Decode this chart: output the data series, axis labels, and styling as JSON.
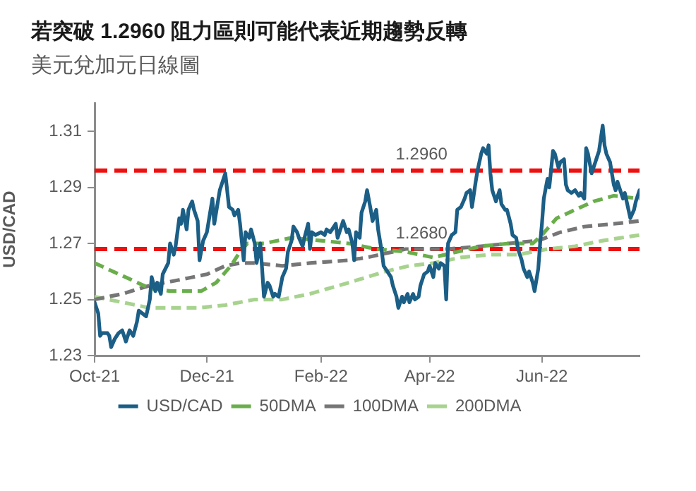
{
  "chart_data": {
    "type": "line",
    "title": "若突破 1.2960 阻力區則可能代表近期趨勢反轉",
    "subtitle": "美元兌加元日線圖",
    "ylabel": "USD/CAD",
    "legend": "bottom",
    "xlim": [
      "2021-10-01",
      "2022-07-24"
    ],
    "xticks": [
      {
        "value": "2021-10-01",
        "label": "Oct-21"
      },
      {
        "value": "2021-12-01",
        "label": "Dec-21"
      },
      {
        "value": "2022-02-01",
        "label": "Feb-22"
      },
      {
        "value": "2022-04-01",
        "label": "Apr-22"
      },
      {
        "value": "2022-06-01",
        "label": "Jun-22"
      }
    ],
    "ylim": [
      1.23,
      1.32
    ],
    "yticks": [
      1.23,
      1.25,
      1.27,
      1.29,
      1.31
    ],
    "ref_lines": [
      {
        "axis": "y",
        "value": 1.296,
        "label": "1.2960",
        "color": "#ee1111",
        "line_style": "dashed"
      },
      {
        "axis": "y",
        "value": 1.268,
        "label": "1.2680",
        "color": "#ee1111",
        "line_style": "dashed"
      }
    ],
    "series": [
      {
        "name": "USD/CAD",
        "color": "#1b5e86",
        "line_style": "solid",
        "x": [
          "2021-10-01",
          "2021-10-03",
          "2021-10-04",
          "2021-10-05",
          "2021-10-08",
          "2021-10-09",
          "2021-10-10",
          "2021-10-12",
          "2021-10-14",
          "2021-10-16",
          "2021-10-18",
          "2021-10-20",
          "2021-10-22",
          "2021-10-24",
          "2021-10-25",
          "2021-10-27",
          "2021-10-29",
          "2021-10-31",
          "2021-11-01",
          "2021-11-03",
          "2021-11-04",
          "2021-11-06",
          "2021-11-07",
          "2021-11-10",
          "2021-11-11",
          "2021-11-13",
          "2021-11-14",
          "2021-11-16",
          "2021-11-17",
          "2021-11-18",
          "2021-11-20",
          "2021-11-21",
          "2021-11-23",
          "2021-11-24",
          "2021-11-26",
          "2021-11-27",
          "2021-11-29",
          "2021-12-01",
          "2021-12-02",
          "2021-12-04",
          "2021-12-05",
          "2021-12-07",
          "2021-12-08",
          "2021-12-10",
          "2021-12-11",
          "2021-12-12",
          "2021-12-13",
          "2021-12-15",
          "2021-12-16",
          "2021-12-18",
          "2021-12-19",
          "2021-12-21",
          "2021-12-22",
          "2021-12-24",
          "2021-12-25",
          "2021-12-27",
          "2021-12-28",
          "2021-12-30",
          "2021-12-31",
          "2022-01-01",
          "2022-01-03",
          "2022-01-04",
          "2022-01-06",
          "2022-01-07",
          "2022-01-09",
          "2022-01-11",
          "2022-01-13",
          "2022-01-14",
          "2022-01-16",
          "2022-01-17",
          "2022-01-19",
          "2022-01-20",
          "2022-01-22",
          "2022-01-23",
          "2022-01-25",
          "2022-01-26",
          "2022-01-27",
          "2022-01-29",
          "2022-02-01",
          "2022-02-03",
          "2022-02-04",
          "2022-02-06",
          "2022-02-07",
          "2022-02-09",
          "2022-02-10",
          "2022-02-12",
          "2022-02-13",
          "2022-02-15",
          "2022-02-16",
          "2022-02-18",
          "2022-02-19",
          "2022-02-20",
          "2022-02-22",
          "2022-02-23",
          "2022-02-25",
          "2022-02-26",
          "2022-02-28",
          "2022-03-01",
          "2022-03-03",
          "2022-03-04",
          "2022-03-06",
          "2022-03-07",
          "2022-03-09",
          "2022-03-11",
          "2022-03-12",
          "2022-03-14",
          "2022-03-15",
          "2022-03-17",
          "2022-03-18",
          "2022-03-20",
          "2022-03-21",
          "2022-03-23",
          "2022-03-24",
          "2022-03-26",
          "2022-03-27",
          "2022-03-29",
          "2022-03-31",
          "2022-04-01",
          "2022-04-03",
          "2022-04-04",
          "2022-04-06",
          "2022-04-07",
          "2022-04-09",
          "2022-04-10",
          "2022-04-11",
          "2022-04-13",
          "2022-04-15",
          "2022-04-16",
          "2022-04-18",
          "2022-04-20",
          "2022-04-21",
          "2022-04-23",
          "2022-04-24",
          "2022-04-26",
          "2022-04-27",
          "2022-04-29",
          "2022-04-30",
          "2022-05-02",
          "2022-05-03",
          "2022-05-04",
          "2022-05-05",
          "2022-05-07",
          "2022-05-09",
          "2022-05-10",
          "2022-05-12",
          "2022-05-13",
          "2022-05-15",
          "2022-05-16",
          "2022-05-18",
          "2022-05-19",
          "2022-05-21",
          "2022-05-22",
          "2022-05-24",
          "2022-05-25",
          "2022-05-27",
          "2022-05-28",
          "2022-05-30",
          "2022-05-31",
          "2022-06-01",
          "2022-06-02",
          "2022-06-04",
          "2022-06-05",
          "2022-06-07",
          "2022-06-08",
          "2022-06-10",
          "2022-06-11",
          "2022-06-13",
          "2022-06-14",
          "2022-06-15",
          "2022-06-17",
          "2022-06-19",
          "2022-06-21",
          "2022-06-22",
          "2022-06-24",
          "2022-06-25",
          "2022-06-26",
          "2022-06-28",
          "2022-06-29",
          "2022-07-01",
          "2022-07-02",
          "2022-07-04",
          "2022-07-05",
          "2022-07-06",
          "2022-07-08",
          "2022-07-10",
          "2022-07-11",
          "2022-07-12",
          "2022-07-14",
          "2022-07-15",
          "2022-07-16",
          "2022-07-18",
          "2022-07-19",
          "2022-07-21",
          "2022-07-22",
          "2022-07-24"
        ],
        "values": [
          1.249,
          1.245,
          1.237,
          1.238,
          1.238,
          1.237,
          1.233,
          1.236,
          1.238,
          1.239,
          1.235,
          1.239,
          1.237,
          1.242,
          1.246,
          1.245,
          1.244,
          1.25,
          1.258,
          1.253,
          1.256,
          1.252,
          1.259,
          1.263,
          1.27,
          1.266,
          1.269,
          1.279,
          1.277,
          1.282,
          1.275,
          1.282,
          1.285,
          1.282,
          1.278,
          1.264,
          1.271,
          1.274,
          1.278,
          1.286,
          1.277,
          1.285,
          1.289,
          1.293,
          1.295,
          1.289,
          1.283,
          1.282,
          1.28,
          1.282,
          1.277,
          1.264,
          1.274,
          1.272,
          1.275,
          1.27,
          1.263,
          1.27,
          1.261,
          1.251,
          1.256,
          1.255,
          1.251,
          1.252,
          1.251,
          1.258,
          1.261,
          1.267,
          1.271,
          1.276,
          1.274,
          1.272,
          1.269,
          1.272,
          1.277,
          1.268,
          1.274,
          1.273,
          1.274,
          1.273,
          1.275,
          1.274,
          1.275,
          1.277,
          1.272,
          1.276,
          1.278,
          1.274,
          1.275,
          1.27,
          1.264,
          1.274,
          1.272,
          1.281,
          1.285,
          1.289,
          1.282,
          1.278,
          1.282,
          1.275,
          1.267,
          1.262,
          1.26,
          1.258,
          1.255,
          1.251,
          1.247,
          1.251,
          1.249,
          1.252,
          1.249,
          1.252,
          1.25,
          1.251,
          1.255,
          1.259,
          1.26,
          1.262,
          1.258,
          1.263,
          1.261,
          1.263,
          1.262,
          1.25,
          1.27,
          1.273,
          1.274,
          1.282,
          1.283,
          1.286,
          1.288,
          1.289,
          1.283,
          1.292,
          1.296,
          1.302,
          1.304,
          1.302,
          1.305,
          1.295,
          1.289,
          1.285,
          1.289,
          1.284,
          1.282,
          1.282,
          1.277,
          1.273,
          1.272,
          1.268,
          1.264,
          1.261,
          1.258,
          1.26,
          1.256,
          1.253,
          1.261,
          1.27,
          1.277,
          1.286,
          1.293,
          1.29,
          1.303,
          1.302,
          1.297,
          1.299,
          1.3,
          1.291,
          1.289,
          1.288,
          1.289,
          1.287,
          1.288,
          1.286,
          1.304,
          1.302,
          1.295,
          1.297,
          1.301,
          1.303,
          1.312,
          1.305,
          1.302,
          1.299,
          1.291,
          1.289,
          1.292,
          1.288,
          1.286,
          1.288,
          1.282,
          1.279,
          1.282,
          1.285,
          1.289
        ]
      },
      {
        "name": "50DMA",
        "color": "#6aae4c",
        "line_style": "dashed",
        "x": [
          "2021-10-01",
          "2021-10-11",
          "2021-10-21",
          "2021-10-31",
          "2021-11-11",
          "2021-11-21",
          "2021-11-28",
          "2021-12-06",
          "2021-12-14",
          "2021-12-19",
          "2021-12-23",
          "2022-01-01",
          "2022-01-16",
          "2022-02-01",
          "2022-02-16",
          "2022-03-03",
          "2022-03-19",
          "2022-04-03",
          "2022-04-16",
          "2022-04-29",
          "2022-05-14",
          "2022-05-27",
          "2022-06-01",
          "2022-06-09",
          "2022-06-19",
          "2022-06-29",
          "2022-07-10",
          "2022-07-24"
        ],
        "values": [
          1.263,
          1.26,
          1.257,
          1.254,
          1.253,
          1.253,
          1.253,
          1.256,
          1.262,
          1.267,
          1.27,
          1.27,
          1.272,
          1.271,
          1.27,
          1.268,
          1.267,
          1.265,
          1.267,
          1.269,
          1.27,
          1.27,
          1.273,
          1.279,
          1.282,
          1.285,
          1.287,
          1.286
        ]
      },
      {
        "name": "100DMA",
        "color": "#767676",
        "line_style": "dashed",
        "x": [
          "2021-10-01",
          "2021-10-16",
          "2021-10-31",
          "2021-11-16",
          "2021-12-01",
          "2021-12-11",
          "2021-12-19",
          "2021-12-27",
          "2022-01-11",
          "2022-01-26",
          "2022-02-16",
          "2022-02-26",
          "2022-03-19",
          "2022-04-11",
          "2022-04-29",
          "2022-05-14",
          "2022-05-30",
          "2022-06-11",
          "2022-06-24",
          "2022-07-10",
          "2022-07-24"
        ],
        "values": [
          1.25,
          1.252,
          1.255,
          1.257,
          1.259,
          1.262,
          1.263,
          1.263,
          1.262,
          1.263,
          1.264,
          1.265,
          1.268,
          1.268,
          1.269,
          1.27,
          1.271,
          1.274,
          1.276,
          1.277,
          1.278
        ]
      },
      {
        "name": "200DMA",
        "color": "#a8d38f",
        "line_style": "dashed",
        "x": [
          "2021-10-01",
          "2021-10-16",
          "2021-10-31",
          "2021-11-11",
          "2021-11-26",
          "2021-12-11",
          "2021-12-27",
          "2022-01-11",
          "2022-01-26",
          "2022-02-16",
          "2022-02-26",
          "2022-03-08",
          "2022-03-21",
          "2022-04-03",
          "2022-04-18",
          "2022-05-04",
          "2022-05-19",
          "2022-06-04",
          "2022-06-19",
          "2022-07-04",
          "2022-07-24"
        ],
        "values": [
          1.251,
          1.249,
          1.247,
          1.247,
          1.247,
          1.248,
          1.25,
          1.25,
          1.252,
          1.256,
          1.258,
          1.26,
          1.262,
          1.263,
          1.265,
          1.266,
          1.266,
          1.268,
          1.269,
          1.271,
          1.273
        ]
      }
    ]
  }
}
